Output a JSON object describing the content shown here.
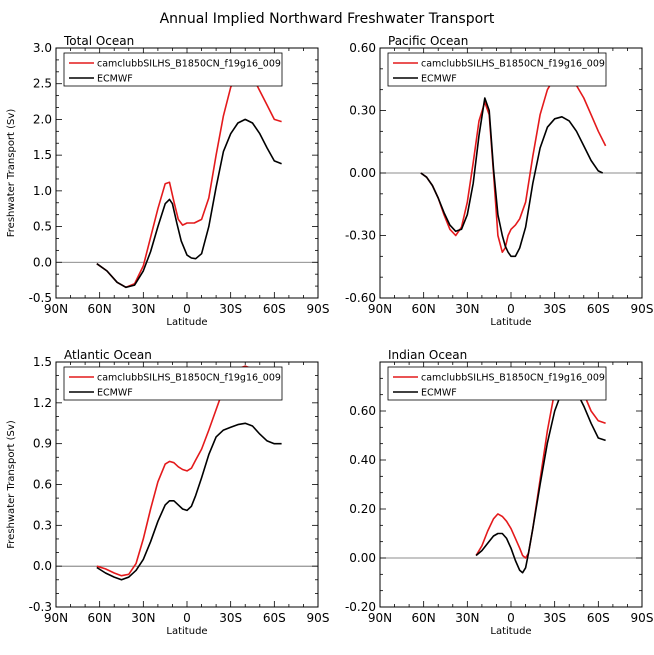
{
  "figure": {
    "title": "Annual Implied Northward Freshwater Transport",
    "ylabel": "Freshwater Transport (Sv)",
    "xlabel": "Latitude"
  },
  "legend": {
    "series_names": [
      "camclubbSILHS_B1850CN_f19g16_009",
      "ECMWF"
    ],
    "colors": [
      "#e41a1c",
      "#000000"
    ]
  },
  "x_tick_labels": [
    "90N",
    "60N",
    "30N",
    "0",
    "30S",
    "60S",
    "90S"
  ],
  "chart_data": [
    {
      "type": "line",
      "title": "Total Ocean",
      "xlim": [
        90,
        -90
      ],
      "ylim": [
        -0.5,
        3.0
      ],
      "y_ticks": [
        -0.5,
        0.0,
        0.5,
        1.0,
        1.5,
        2.0,
        2.5,
        3.0
      ],
      "y_tick_labels": [
        "-0.5",
        "0.0",
        "0.5",
        "1.0",
        "1.5",
        "2.0",
        "2.5",
        "3.0"
      ],
      "series": [
        {
          "name": "camclubbSILHS_B1850CN_f19g16_009",
          "x": [
            62,
            55,
            48,
            42,
            36,
            30,
            25,
            20,
            15,
            12,
            9,
            6,
            3,
            0,
            -5,
            -10,
            -15,
            -20,
            -25,
            -30,
            -35,
            -40,
            -45,
            -50,
            -55,
            -60,
            -65
          ],
          "y": [
            -0.02,
            -0.12,
            -0.28,
            -0.35,
            -0.3,
            -0.05,
            0.35,
            0.75,
            1.1,
            1.12,
            0.85,
            0.6,
            0.52,
            0.55,
            0.55,
            0.6,
            0.9,
            1.5,
            2.05,
            2.45,
            2.65,
            2.7,
            2.6,
            2.4,
            2.2,
            2.0,
            1.97
          ]
        },
        {
          "name": "ECMWF",
          "x": [
            62,
            55,
            48,
            42,
            36,
            30,
            25,
            20,
            15,
            12,
            10,
            7,
            4,
            0,
            -3,
            -6,
            -10,
            -15,
            -20,
            -25,
            -30,
            -35,
            -40,
            -45,
            -50,
            -55,
            -60,
            -65
          ],
          "y": [
            -0.02,
            -0.12,
            -0.28,
            -0.35,
            -0.32,
            -0.12,
            0.15,
            0.5,
            0.82,
            0.88,
            0.82,
            0.55,
            0.3,
            0.1,
            0.06,
            0.05,
            0.12,
            0.5,
            1.05,
            1.55,
            1.8,
            1.95,
            2.0,
            1.95,
            1.8,
            1.6,
            1.42,
            1.38
          ]
        }
      ]
    },
    {
      "type": "line",
      "title": "Pacific Ocean",
      "xlim": [
        90,
        -90
      ],
      "ylim": [
        -0.6,
        0.6
      ],
      "y_ticks": [
        -0.6,
        -0.3,
        0.0,
        0.3,
        0.6
      ],
      "y_tick_labels": [
        "-0.60",
        "-0.30",
        "0.00",
        "0.30",
        "0.60"
      ],
      "series": [
        {
          "name": "camclubbSILHS_B1850CN_f19g16_009",
          "x": [
            62,
            58,
            54,
            50,
            46,
            42,
            38,
            34,
            30,
            26,
            22,
            18,
            15,
            12,
            9,
            6,
            4,
            2,
            0,
            -3,
            -6,
            -10,
            -15,
            -20,
            -25,
            -30,
            -35,
            -40,
            -45,
            -50,
            -55,
            -60,
            -65
          ],
          "y": [
            0.0,
            -0.02,
            -0.06,
            -0.12,
            -0.2,
            -0.27,
            -0.3,
            -0.26,
            -0.14,
            0.05,
            0.25,
            0.34,
            0.28,
            0.0,
            -0.3,
            -0.38,
            -0.36,
            -0.3,
            -0.27,
            -0.25,
            -0.22,
            -0.14,
            0.08,
            0.28,
            0.4,
            0.46,
            0.47,
            0.46,
            0.42,
            0.36,
            0.28,
            0.2,
            0.13
          ]
        },
        {
          "name": "ECMWF",
          "x": [
            62,
            58,
            54,
            50,
            46,
            42,
            38,
            34,
            30,
            26,
            22,
            18,
            15,
            12,
            9,
            6,
            4,
            2,
            0,
            -3,
            -6,
            -10,
            -15,
            -20,
            -25,
            -30,
            -35,
            -40,
            -45,
            -50,
            -55,
            -60,
            -63
          ],
          "y": [
            0.0,
            -0.02,
            -0.06,
            -0.12,
            -0.19,
            -0.25,
            -0.28,
            -0.27,
            -0.2,
            -0.05,
            0.18,
            0.36,
            0.3,
            0.02,
            -0.2,
            -0.3,
            -0.35,
            -0.38,
            -0.4,
            -0.4,
            -0.36,
            -0.26,
            -0.05,
            0.12,
            0.22,
            0.26,
            0.27,
            0.25,
            0.2,
            0.13,
            0.06,
            0.01,
            0.0
          ]
        }
      ]
    },
    {
      "type": "line",
      "title": "Atlantic Ocean",
      "xlim": [
        90,
        -90
      ],
      "ylim": [
        -0.3,
        1.5
      ],
      "y_ticks": [
        -0.3,
        0.0,
        0.3,
        0.6,
        0.9,
        1.2,
        1.5
      ],
      "y_tick_labels": [
        "-0.3",
        "0.0",
        "0.3",
        "0.6",
        "0.9",
        "1.2",
        "1.5"
      ],
      "series": [
        {
          "name": "camclubbSILHS_B1850CN_f19g16_009",
          "x": [
            62,
            56,
            50,
            45,
            40,
            35,
            30,
            25,
            20,
            15,
            12,
            9,
            6,
            3,
            0,
            -3,
            -6,
            -10,
            -15,
            -20,
            -25,
            -30,
            -35,
            -40,
            -45,
            -50,
            -55,
            -60,
            -65
          ],
          "y": [
            0.0,
            -0.02,
            -0.05,
            -0.07,
            -0.06,
            0.02,
            0.2,
            0.42,
            0.62,
            0.75,
            0.77,
            0.76,
            0.73,
            0.71,
            0.7,
            0.72,
            0.78,
            0.86,
            1.0,
            1.15,
            1.3,
            1.4,
            1.45,
            1.47,
            1.45,
            1.4,
            1.35,
            1.31,
            1.29
          ]
        },
        {
          "name": "ECMWF",
          "x": [
            62,
            56,
            50,
            45,
            40,
            35,
            30,
            25,
            20,
            15,
            12,
            9,
            6,
            3,
            0,
            -3,
            -6,
            -10,
            -15,
            -20,
            -25,
            -30,
            -35,
            -40,
            -45,
            -50,
            -55,
            -60,
            -65
          ],
          "y": [
            -0.01,
            -0.05,
            -0.08,
            -0.1,
            -0.08,
            -0.03,
            0.05,
            0.18,
            0.33,
            0.45,
            0.48,
            0.48,
            0.45,
            0.42,
            0.41,
            0.44,
            0.52,
            0.65,
            0.82,
            0.95,
            1.0,
            1.02,
            1.04,
            1.05,
            1.03,
            0.97,
            0.92,
            0.9,
            0.9
          ]
        }
      ]
    },
    {
      "type": "line",
      "title": "Indian Ocean",
      "xlim": [
        90,
        -90
      ],
      "ylim": [
        -0.2,
        0.8
      ],
      "y_ticks": [
        -0.2,
        0.0,
        0.2,
        0.4,
        0.6
      ],
      "y_tick_labels": [
        "-0.20",
        "0.00",
        "0.20",
        "0.40",
        "0.60"
      ],
      "series": [
        {
          "name": "camclubbSILHS_B1850CN_f19g16_009",
          "x": [
            24,
            20,
            16,
            12,
            9,
            6,
            3,
            0,
            -3,
            -6,
            -8,
            -10,
            -12,
            -15,
            -20,
            -25,
            -30,
            -35,
            -40,
            -45,
            -50,
            -55,
            -60,
            -65
          ],
          "y": [
            0.01,
            0.05,
            0.11,
            0.16,
            0.18,
            0.17,
            0.15,
            0.12,
            0.08,
            0.04,
            0.01,
            0.0,
            0.02,
            0.12,
            0.32,
            0.52,
            0.68,
            0.76,
            0.77,
            0.74,
            0.67,
            0.6,
            0.56,
            0.55
          ]
        },
        {
          "name": "ECMWF",
          "x": [
            24,
            20,
            16,
            12,
            9,
            6,
            3,
            0,
            -3,
            -6,
            -8,
            -10,
            -12,
            -15,
            -20,
            -25,
            -30,
            -35,
            -40,
            -45,
            -50,
            -55,
            -60,
            -65
          ],
          "y": [
            0.01,
            0.03,
            0.06,
            0.09,
            0.1,
            0.1,
            0.08,
            0.04,
            -0.01,
            -0.05,
            -0.06,
            -0.04,
            0.02,
            0.12,
            0.3,
            0.47,
            0.6,
            0.68,
            0.7,
            0.68,
            0.62,
            0.55,
            0.49,
            0.48
          ]
        }
      ]
    }
  ]
}
